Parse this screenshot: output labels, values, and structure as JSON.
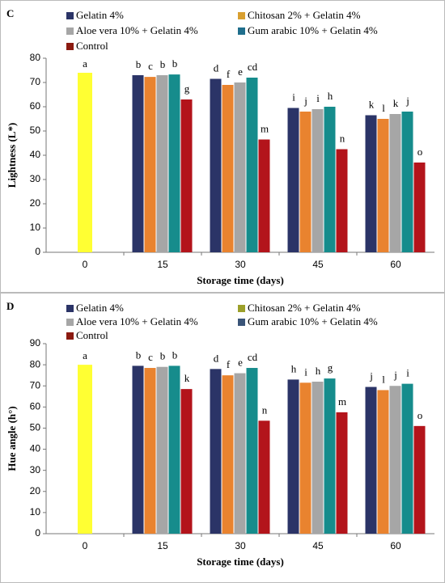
{
  "chart_data": [
    {
      "type": "bar",
      "panel": "C",
      "ylabel": "Lightness (L*)",
      "xlabel": "Storage time (days)",
      "categories": [
        "0",
        "15",
        "30",
        "45",
        "60"
      ],
      "ylim": [
        0,
        80
      ],
      "yticks": [
        0,
        10,
        20,
        30,
        40,
        50,
        60,
        70,
        80
      ],
      "baseline": {
        "color": "#ffff33",
        "values": [
          74,
          null,
          null,
          null,
          null
        ],
        "letters": [
          "a",
          null,
          null,
          null,
          null
        ]
      },
      "series": [
        {
          "name": "Gelatin 4%",
          "color": "#2b3467",
          "legend_color": "#2b3467",
          "values": [
            null,
            73,
            71.5,
            59.5,
            56.5
          ],
          "letters": [
            null,
            "b",
            "d",
            "i",
            "k"
          ]
        },
        {
          "name": "Chitosan 2% + Gelatin 4%",
          "color": "#e9832f",
          "legend_color": "#d9a030",
          "values": [
            null,
            72.3,
            69,
            58,
            55
          ],
          "letters": [
            null,
            "c",
            "f",
            "j",
            "l"
          ]
        },
        {
          "name": "Aloe vera 10% + Gelatin 4%",
          "color": "#a6a6a6",
          "legend_color": "#a6a6a6",
          "values": [
            null,
            73,
            70,
            59,
            57
          ],
          "letters": [
            null,
            "b",
            "e",
            "i",
            "k"
          ]
        },
        {
          "name": "Gum arabic 10% + Gelatin 4%",
          "color": "#168c8c",
          "legend_color": "#1f6e8c",
          "values": [
            null,
            73.3,
            72,
            60,
            58
          ],
          "letters": [
            null,
            "b",
            "cd",
            "h",
            "j"
          ]
        },
        {
          "name": "Control",
          "color": "#b3141b",
          "legend_color": "#8b1a10",
          "values": [
            null,
            63,
            46.5,
            42.5,
            37
          ],
          "letters": [
            null,
            "g",
            "m",
            "n",
            "o"
          ]
        }
      ]
    },
    {
      "type": "bar",
      "panel": "D",
      "ylabel": "Hue angle (h°)",
      "xlabel": "Storage time (days)",
      "categories": [
        "0",
        "15",
        "30",
        "45",
        "60"
      ],
      "ylim": [
        0,
        90
      ],
      "yticks": [
        0,
        10,
        20,
        30,
        40,
        50,
        60,
        70,
        80,
        90
      ],
      "baseline": {
        "color": "#ffff33",
        "values": [
          80,
          null,
          null,
          null,
          null
        ],
        "letters": [
          "a",
          null,
          null,
          null,
          null
        ]
      },
      "series": [
        {
          "name": "Gelatin 4%",
          "color": "#2b3467",
          "legend_color": "#2b3467",
          "values": [
            null,
            79.5,
            78,
            73,
            69.5
          ],
          "letters": [
            null,
            "b",
            "d",
            "h",
            "j"
          ]
        },
        {
          "name": "Chitosan 2% + Gelatin 4%",
          "color": "#e9832f",
          "legend_color": "#9ca02a",
          "values": [
            null,
            78.5,
            75,
            71.5,
            68
          ],
          "letters": [
            null,
            "c",
            "f",
            "i",
            "l"
          ]
        },
        {
          "name": "Aloe vera 10% + Gelatin 4%",
          "color": "#a6a6a6",
          "legend_color": "#a6a6a6",
          "values": [
            null,
            79,
            76,
            72,
            70
          ],
          "letters": [
            null,
            "b",
            "e",
            "h",
            "j"
          ]
        },
        {
          "name": "Gum arabic 10% + Gelatin 4%",
          "color": "#168c8c",
          "legend_color": "#3a5478",
          "values": [
            null,
            79.5,
            78.5,
            73.5,
            71
          ],
          "letters": [
            null,
            "b",
            "cd",
            "g",
            "i"
          ]
        },
        {
          "name": "Control",
          "color": "#b3141b",
          "legend_color": "#8b1a10",
          "values": [
            null,
            68.5,
            53.5,
            57.5,
            51
          ],
          "letters": [
            null,
            "k",
            "n",
            "m",
            "o"
          ]
        }
      ]
    }
  ]
}
